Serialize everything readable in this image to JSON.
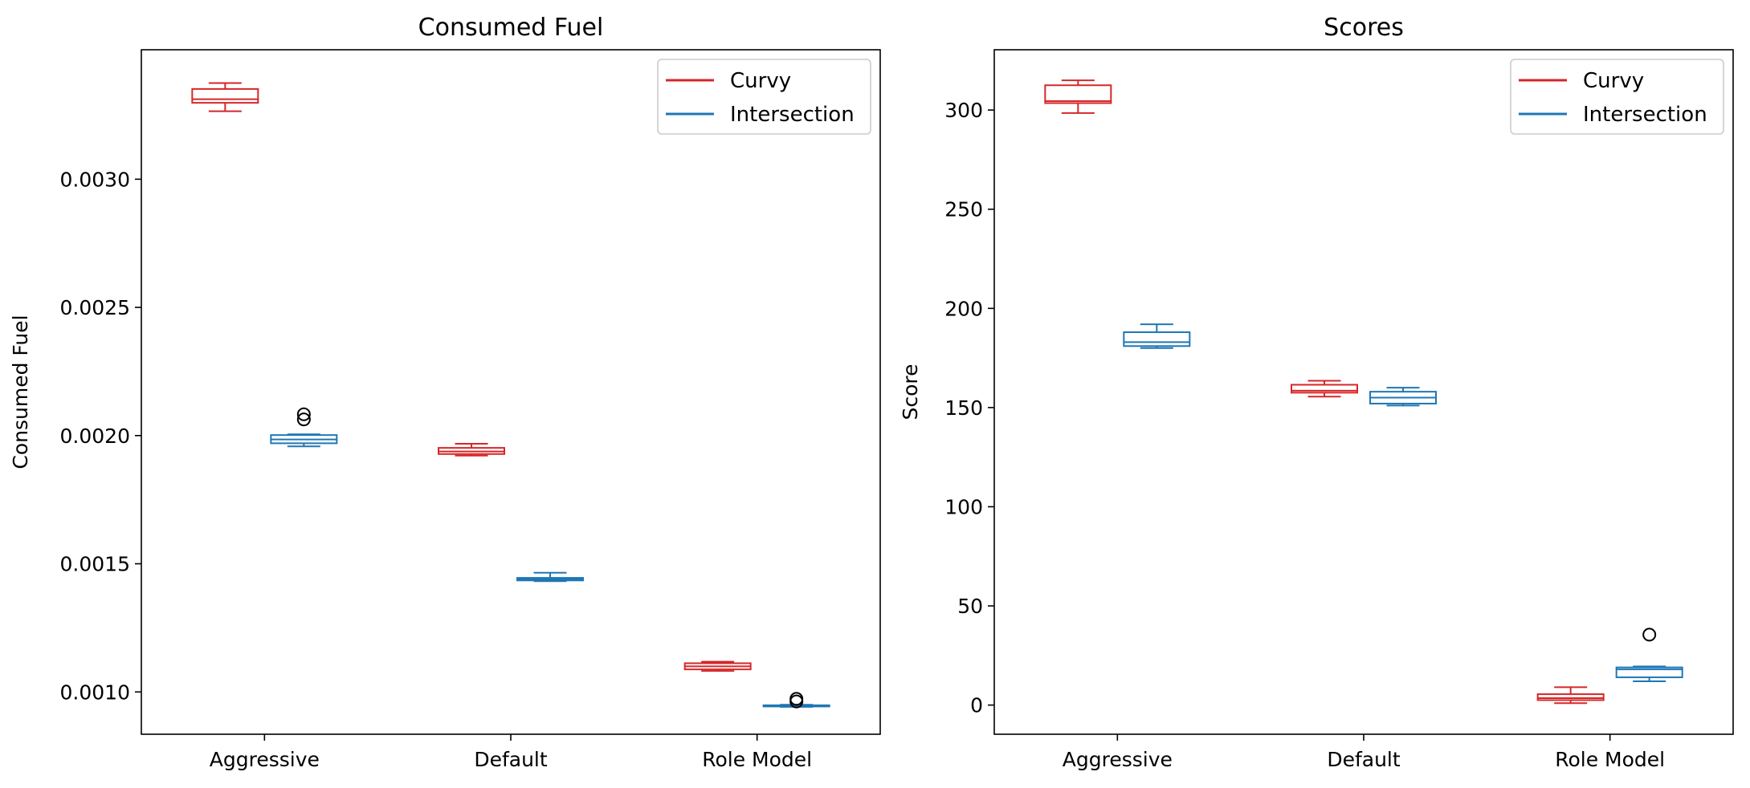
{
  "colors": {
    "curvy": "#d62728",
    "intersection": "#1f77b4",
    "frame": "#000000"
  },
  "chart_data": [
    {
      "type": "boxplot",
      "title": "Consumed Fuel",
      "xlabel": "",
      "ylabel": "Consumed Fuel",
      "categories": [
        "Aggressive",
        "Default",
        "Role Model"
      ],
      "ylim": [
        0.000835,
        0.003505
      ],
      "yticks": [
        0.001,
        0.0015,
        0.002,
        0.0025,
        0.003
      ],
      "ytick_labels": [
        "0.0010",
        "0.0015",
        "0.0020",
        "0.0025",
        "0.0030"
      ],
      "legend": {
        "position": "top-right",
        "entries": [
          "Curvy",
          "Intersection"
        ]
      },
      "series": [
        {
          "name": "Curvy",
          "color": "#d62728",
          "boxes": [
            {
              "category": "Aggressive",
              "whislo": 0.003265,
              "q1": 0.003298,
              "med": 0.003312,
              "q3": 0.003352,
              "whishi": 0.003375,
              "fliers": []
            },
            {
              "category": "Default",
              "whislo": 0.001922,
              "q1": 0.001928,
              "med": 0.001938,
              "q3": 0.001952,
              "whishi": 0.001968,
              "fliers": []
            },
            {
              "category": "Role Model",
              "whislo": 0.001082,
              "q1": 0.001088,
              "med": 0.0011,
              "q3": 0.001112,
              "whishi": 0.001118,
              "fliers": []
            }
          ]
        },
        {
          "name": "Intersection",
          "color": "#1f77b4",
          "boxes": [
            {
              "category": "Aggressive",
              "whislo": 0.001958,
              "q1": 0.00197,
              "med": 0.001985,
              "q3": 0.002002,
              "whishi": 0.002005,
              "fliers": [
                0.002063,
                0.002083
              ]
            },
            {
              "category": "Default",
              "whislo": 0.001432,
              "q1": 0.001435,
              "med": 0.00144,
              "q3": 0.001445,
              "whishi": 0.001465,
              "fliers": []
            },
            {
              "category": "Role Model",
              "whislo": 0.000942,
              "q1": 0.000944,
              "med": 0.000946,
              "q3": 0.000948,
              "whishi": 0.00095,
              "fliers": [
                0.000963,
                0.000973
              ]
            }
          ]
        }
      ]
    },
    {
      "type": "boxplot",
      "title": "Scores",
      "xlabel": "",
      "ylabel": "Score",
      "categories": [
        "Aggressive",
        "Default",
        "Role Model"
      ],
      "ylim": [
        -14.7,
        330.4
      ],
      "yticks": [
        0,
        50,
        100,
        150,
        200,
        250,
        300
      ],
      "ytick_labels": [
        "0",
        "50",
        "100",
        "150",
        "200",
        "250",
        "300"
      ],
      "legend": {
        "position": "top-right",
        "entries": [
          "Curvy",
          "Intersection"
        ]
      },
      "series": [
        {
          "name": "Curvy",
          "color": "#d62728",
          "boxes": [
            {
              "category": "Aggressive",
              "whislo": 298.5,
              "q1": 303.5,
              "med": 304.5,
              "q3": 312.5,
              "whishi": 315.0,
              "fliers": []
            },
            {
              "category": "Default",
              "whislo": 155.5,
              "q1": 157.5,
              "med": 158.5,
              "q3": 161.5,
              "whishi": 163.5,
              "fliers": []
            },
            {
              "category": "Role Model",
              "whislo": 1.0,
              "q1": 2.5,
              "med": 3.5,
              "q3": 5.5,
              "whishi": 9.0,
              "fliers": []
            }
          ]
        },
        {
          "name": "Intersection",
          "color": "#1f77b4",
          "boxes": [
            {
              "category": "Aggressive",
              "whislo": 180.0,
              "q1": 181.0,
              "med": 183.0,
              "q3": 188.0,
              "whishi": 192.0,
              "fliers": []
            },
            {
              "category": "Default",
              "whislo": 151.0,
              "q1": 152.0,
              "med": 155.0,
              "q3": 158.0,
              "whishi": 160.0,
              "fliers": []
            },
            {
              "category": "Role Model",
              "whislo": 12.0,
              "q1": 14.0,
              "med": 18.0,
              "q3": 19.0,
              "whishi": 19.5,
              "fliers": [
                35.5
              ]
            }
          ]
        }
      ]
    }
  ]
}
